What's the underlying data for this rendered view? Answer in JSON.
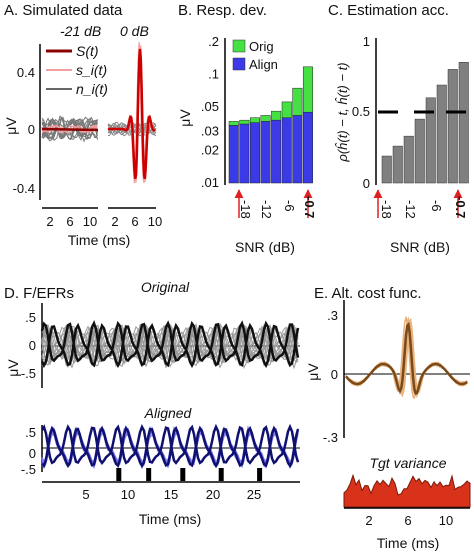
{
  "chart_data": [
    {
      "panel": "A",
      "type": "line",
      "title": "A. Simulated data",
      "subtitles": [
        "-21 dB",
        "0 dB"
      ],
      "xlabel": "Time (ms)",
      "ylabel": "μV",
      "xticks": [
        "2",
        "6",
        "10",
        "2",
        "6",
        "10"
      ],
      "yticks": [
        "0.4",
        "0",
        "-0.4"
      ],
      "ylim": [
        -0.5,
        0.55
      ],
      "legend": [
        "S(t)",
        "s_i(t)",
        "n_i(t)"
      ],
      "legend_placement": "top-left",
      "series": [
        {
          "name": "S(t)",
          "color": "#8b0000"
        },
        {
          "name": "s_i(t)",
          "color": "#f2a0a0"
        },
        {
          "name": "n_i(t)",
          "color": "#666666"
        }
      ]
    },
    {
      "panel": "B",
      "type": "bar",
      "title": "B. Resp. dev.",
      "xlabel": "SNR (dB)",
      "ylabel": "μV",
      "yscale": "log",
      "ylim": [
        0.01,
        0.2
      ],
      "yticks": [
        ".2",
        ".1",
        ".05",
        ".03",
        ".02",
        ".01"
      ],
      "xticks": [
        "-18",
        "-12",
        "-6",
        "-0.7"
      ],
      "x": [
        -21,
        -18,
        -15,
        -12,
        -9,
        -6,
        -3,
        -0.7
      ],
      "series": [
        {
          "name": "Orig",
          "color": "#44e044",
          "values": [
            0.037,
            0.038,
            0.04,
            0.042,
            0.046,
            0.056,
            0.075,
            0.118
          ]
        },
        {
          "name": "Align",
          "color": "#3a3ae6",
          "values": [
            0.034,
            0.035,
            0.036,
            0.037,
            0.038,
            0.04,
            0.042,
            0.045
          ]
        }
      ],
      "legend_placement": "top-left"
    },
    {
      "panel": "C",
      "type": "bar",
      "title": "C. Estimation acc.",
      "xlabel": "SNR (dB)",
      "ylabel": "ρ(ĥ(t) − t, ĥ(t) − t)",
      "ylim": [
        0,
        1
      ],
      "yticks": [
        "1",
        "0.5",
        "0"
      ],
      "xticks": [
        "-18",
        "-12",
        "-6",
        "-0.7"
      ],
      "x": [
        -21,
        -18,
        -15,
        -12,
        -9,
        -6,
        -3,
        -0.7
      ],
      "values": [
        0.19,
        0.26,
        0.33,
        0.45,
        0.6,
        0.69,
        0.8,
        0.85
      ],
      "reference_value": 0.5,
      "color": "#808080"
    },
    {
      "panel": "D",
      "type": "line",
      "title": "D. F/EFRs",
      "subtitles": [
        "Original",
        "Aligned"
      ],
      "xlabel": "Time (ms)",
      "ylabel": "μV",
      "xticks": [
        "5",
        "10",
        "15",
        "20",
        "25"
      ],
      "yticks": [
        ".5",
        "0",
        "-.5"
      ],
      "xlim": [
        0,
        30
      ],
      "ylim": [
        -0.6,
        0.6
      ],
      "markers_ms": [
        9,
        12.5,
        16.5,
        21,
        25.5
      ]
    },
    {
      "panel": "E",
      "type": "line",
      "title": "E. Alt. cost func.",
      "subtitle": "Tgt variance",
      "xlabel": "Time (ms)",
      "ylabel": "μV",
      "xticks": [
        "2",
        "6",
        "10"
      ],
      "yticks": [
        ".3",
        "0",
        "-.3"
      ],
      "xlim": [
        0,
        12
      ],
      "ylim": [
        -0.35,
        0.4
      ]
    }
  ]
}
